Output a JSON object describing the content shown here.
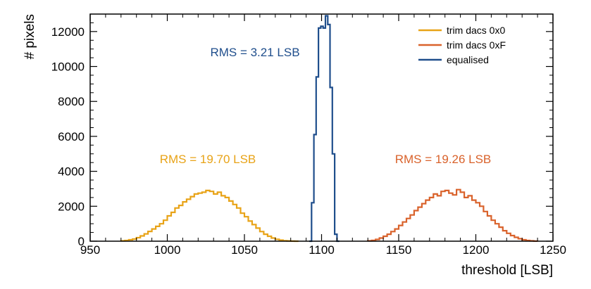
{
  "chart_data": {
    "type": "line",
    "xlabel": "threshold [LSB]",
    "ylabel": "# pixels",
    "xlim": [
      950,
      1250
    ],
    "ylim": [
      0,
      13000
    ],
    "xticks": [
      950,
      1000,
      1050,
      1100,
      1150,
      1200,
      1250
    ],
    "yticks": [
      0,
      2000,
      4000,
      6000,
      8000,
      10000,
      12000
    ],
    "grid": false,
    "legend_position": "top-right",
    "series": [
      {
        "name": "trim dacs 0x0",
        "color": "#e8a317",
        "bin_width": 2.5,
        "x": [
          970,
          972.5,
          975,
          977.5,
          980,
          982.5,
          985,
          987.5,
          990,
          992.5,
          995,
          997.5,
          1000,
          1002.5,
          1005,
          1007.5,
          1010,
          1012.5,
          1015,
          1017.5,
          1020,
          1022.5,
          1025,
          1027.5,
          1030,
          1032.5,
          1035,
          1037.5,
          1040,
          1042.5,
          1045,
          1047.5,
          1050,
          1052.5,
          1055,
          1057.5,
          1060,
          1062.5,
          1065,
          1067.5,
          1070,
          1072.5,
          1075,
          1077.5,
          1080,
          1082.5
        ],
        "values": [
          20,
          40,
          80,
          120,
          200,
          300,
          420,
          560,
          700,
          850,
          1000,
          1200,
          1450,
          1650,
          1900,
          2050,
          2250,
          2400,
          2550,
          2700,
          2750,
          2800,
          2900,
          2850,
          2700,
          2800,
          2600,
          2500,
          2300,
          2100,
          1900,
          1600,
          1400,
          1150,
          950,
          750,
          550,
          400,
          280,
          180,
          110,
          60,
          30,
          15,
          5,
          0
        ]
      },
      {
        "name": "trim dacs 0xF",
        "color": "#d9622b",
        "bin_width": 2.5,
        "x": [
          1130,
          1132.5,
          1135,
          1137.5,
          1140,
          1142.5,
          1145,
          1147.5,
          1150,
          1152.5,
          1155,
          1157.5,
          1160,
          1162.5,
          1165,
          1167.5,
          1170,
          1172.5,
          1175,
          1177.5,
          1180,
          1182.5,
          1185,
          1187.5,
          1190,
          1192.5,
          1195,
          1197.5,
          1200,
          1202.5,
          1205,
          1207.5,
          1210,
          1212.5,
          1215,
          1217.5,
          1220,
          1222.5,
          1225,
          1227.5,
          1230,
          1232.5,
          1235,
          1237.5
        ],
        "values": [
          20,
          50,
          100,
          180,
          280,
          400,
          550,
          700,
          900,
          1100,
          1300,
          1500,
          1750,
          1950,
          2150,
          2350,
          2500,
          2700,
          2600,
          2850,
          2900,
          2750,
          2650,
          2950,
          2800,
          2500,
          2600,
          2350,
          2200,
          2000,
          1700,
          1450,
          1200,
          1000,
          800,
          600,
          450,
          320,
          220,
          140,
          80,
          40,
          20,
          5
        ]
      },
      {
        "name": "equalised",
        "color": "#1f4e8c",
        "bin_width": 1.5,
        "x": [
          1092,
          1093.5,
          1095,
          1096.5,
          1098,
          1099.5,
          1101,
          1102.5,
          1104,
          1105.5,
          1107,
          1108.5,
          1110
        ],
        "values": [
          0,
          2200,
          6100,
          9400,
          12200,
          12300,
          12200,
          12900,
          12400,
          8800,
          5000,
          400,
          0
        ]
      }
    ],
    "annotations": [
      {
        "text": "RMS = 3.21 LSB",
        "color": "#1f4e8c"
      },
      {
        "text": "RMS = 19.70 LSB",
        "color": "#e8a317"
      },
      {
        "text": "RMS = 19.26 LSB",
        "color": "#d9622b"
      }
    ]
  }
}
